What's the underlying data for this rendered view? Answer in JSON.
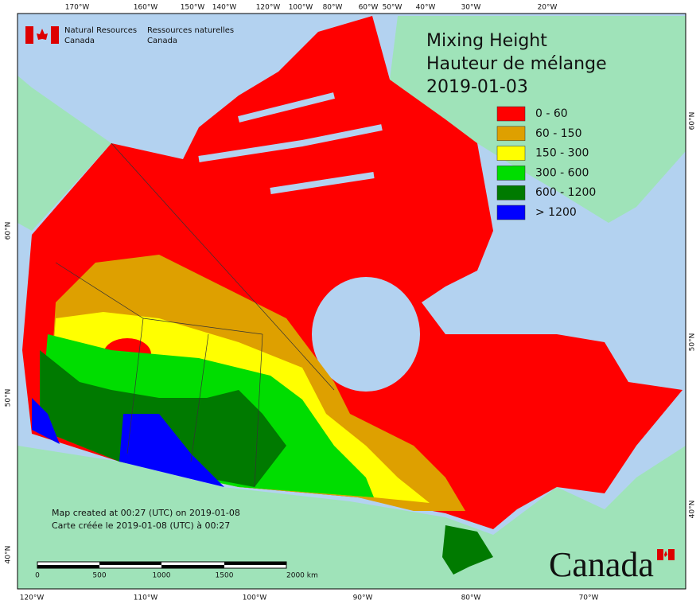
{
  "header": {
    "en_line1": "Natural Resources",
    "en_line2": "Canada",
    "fr_line1": "Ressources naturelles",
    "fr_line2": "Canada"
  },
  "title": {
    "line1": "Mixing Height",
    "line2": "Hauteur de mélange",
    "date": "2019-01-03"
  },
  "legend": [
    {
      "label": "0 - 60",
      "color": "#ff0000"
    },
    {
      "label": "60 - 150",
      "color": "#dea000"
    },
    {
      "label": "150 - 300",
      "color": "#ffff00"
    },
    {
      "label": "300 - 600",
      "color": "#00dd00"
    },
    {
      "label": "600 - 1200",
      "color": "#007a00"
    },
    {
      "label": "> 1200",
      "color": "#0000ff"
    }
  ],
  "graticule": {
    "top": [
      "170°W",
      "160°W",
      "150°W",
      "140°W",
      "120°W",
      "100°W",
      "80°W",
      "60°W",
      "50°W",
      "40°W",
      "30°W",
      "20°W"
    ],
    "bottom": [
      "120°W",
      "110°W",
      "100°W",
      "90°W",
      "80°W",
      "70°W"
    ],
    "left": [
      "60°N",
      "50°N",
      "40°N"
    ],
    "right": [
      "60°N",
      "50°N",
      "40°N"
    ]
  },
  "footer": {
    "line1": "Map created at 00:27 (UTC) on 2019-01-08",
    "line2": "Carte créée le 2019-01-08 (UTC) à 00:27"
  },
  "scale_bar": [
    "0",
    "500",
    "1000",
    "1500",
    "2000  km"
  ],
  "wordmark": "Canada"
}
